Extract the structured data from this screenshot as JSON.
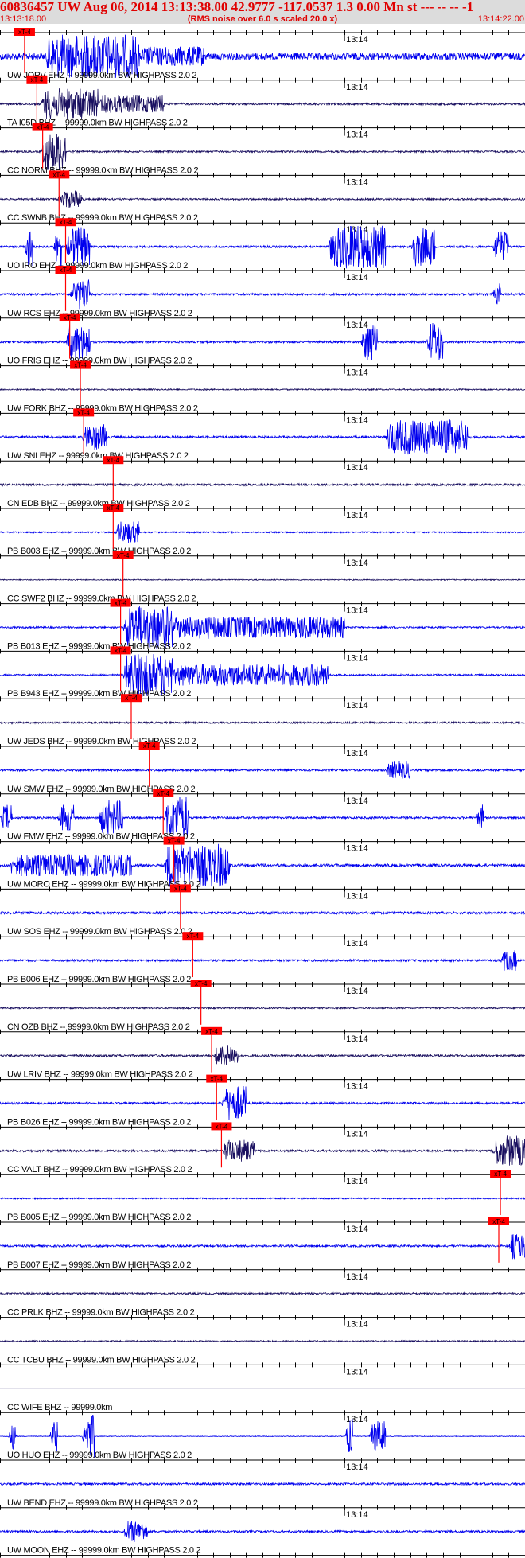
{
  "header": {
    "title": "60836457 UW Aug 06, 2014 13:13:38.00   42.9777 -117.0537  1.3 0.00 Mn st --- -- --  -1",
    "time_start": "13:13:18.00",
    "rms_note": "(RMS noise over 6.0 s scaled 20.0 x)",
    "time_end": "13:14:22.00"
  },
  "colors": {
    "header_background": "#dcdcdc",
    "header_text": "#e00000",
    "pick_marker": "#ff0000",
    "trace_blue": "#0000ee",
    "trace_navy": "#1a1060",
    "axis": "#000000"
  },
  "chart_data": {
    "type": "line",
    "xlabel": "",
    "ylabel": "",
    "x_range": [
      "13:13:18.00",
      "13:14:22.00"
    ],
    "x_range_seconds": [
      0,
      64
    ],
    "minute_marker": {
      "time": "13:14",
      "seconds": 42
    },
    "tick_interval_seconds": 2,
    "pick_label": "xT-4",
    "rows": [
      {
        "label": "UW JORV EHZ -- 99999.0km BW  HIGHPASS  2.0  2",
        "pick_seconds": 3.0,
        "color": "blue",
        "amplitude": 1.0,
        "events": [
          {
            "start": 5.5,
            "end": 17,
            "amp": 1.0
          },
          {
            "start": 17,
            "end": 25,
            "amp": 0.45
          }
        ]
      },
      {
        "label": "TA I05D BHZ -- 99999.0km BW  HIGHPASS  2.0  2",
        "pick_seconds": 4.5,
        "color": "navy",
        "amplitude": 0.3,
        "events": [
          {
            "start": 5,
            "end": 12,
            "amp": 0.7
          },
          {
            "start": 12,
            "end": 20,
            "amp": 0.4
          }
        ]
      },
      {
        "label": "CC NORM BHZ -- 99999.0km BW  HIGHPASS  2.0  2",
        "pick_seconds": 5.2,
        "color": "navy",
        "amplitude": 0.25,
        "events": [
          {
            "start": 5,
            "end": 8,
            "amp": 0.9
          }
        ]
      },
      {
        "label": "CC SWNB BHZ -- 99999.0km BW  HIGHPASS  2.0  2",
        "pick_seconds": 7.2,
        "color": "navy",
        "amplitude": 0.25,
        "events": [
          {
            "start": 7,
            "end": 10,
            "amp": 0.4
          }
        ]
      },
      {
        "label": "UO IRO EHZ -- 99999.0km BW  HIGHPASS  2.0  2",
        "pick_seconds": 8.0,
        "color": "blue",
        "amplitude": 0.3,
        "events": [
          {
            "start": 3,
            "end": 4,
            "amp": 1.0
          },
          {
            "start": 6.5,
            "end": 7.5,
            "amp": 1.0
          },
          {
            "start": 8,
            "end": 11,
            "amp": 0.9
          },
          {
            "start": 40,
            "end": 47,
            "amp": 1.0
          },
          {
            "start": 50,
            "end": 53,
            "amp": 0.9
          },
          {
            "start": 60,
            "end": 62,
            "amp": 0.7
          }
        ]
      },
      {
        "label": "UW RCS EHZ -- 99999.0km BW  HIGHPASS  2.0  2",
        "pick_seconds": 8.0,
        "color": "blue",
        "amplitude": 0.3,
        "events": [
          {
            "start": 8.5,
            "end": 11,
            "amp": 0.7
          },
          {
            "start": 60,
            "end": 61,
            "amp": 0.5
          }
        ]
      },
      {
        "label": "UO FRIS EHZ -- 99999.0km BW  HIGHPASS  2.0  2",
        "pick_seconds": 8.5,
        "color": "blue",
        "amplitude": 0.3,
        "events": [
          {
            "start": 8,
            "end": 11,
            "amp": 0.8
          },
          {
            "start": 44,
            "end": 46,
            "amp": 0.9
          },
          {
            "start": 52,
            "end": 54,
            "amp": 0.9
          }
        ]
      },
      {
        "label": "UW FORK BHZ -- 99999.0km BW  HIGHPASS  2.0  2",
        "pick_seconds": 9.8,
        "color": "navy",
        "amplitude": 0.2,
        "events": []
      },
      {
        "label": "UW SNI EHZ -- 99999.0km BW  HIGHPASS  2.0  2",
        "pick_seconds": 10.2,
        "color": "blue",
        "amplitude": 0.35,
        "events": [
          {
            "start": 10,
            "end": 13,
            "amp": 0.6
          },
          {
            "start": 47,
            "end": 57,
            "amp": 0.8
          }
        ]
      },
      {
        "label": "CN EDB BHZ -- 99999.0km BW  HIGHPASS  2.0  2",
        "pick_seconds": 13.8,
        "color": "navy",
        "amplitude": 0.3,
        "events": []
      },
      {
        "label": "PB B003 EHZ -- 99999.0km BW  HIGHPASS  2.0  2",
        "pick_seconds": 13.8,
        "color": "blue",
        "amplitude": 0.2,
        "events": [
          {
            "start": 14,
            "end": 17,
            "amp": 0.5
          }
        ]
      },
      {
        "label": "CC SWF2 BHZ -- 99999.0km BW  HIGHPASS  2.0  2",
        "pick_seconds": 15.0,
        "color": "navy",
        "amplitude": 0.15,
        "events": []
      },
      {
        "label": "PB B013 EHZ -- 99999.0km BW  HIGHPASS  2.0  2",
        "pick_seconds": 14.7,
        "color": "blue",
        "amplitude": 0.25,
        "events": [
          {
            "start": 15,
            "end": 21,
            "amp": 1.0
          },
          {
            "start": 21,
            "end": 42,
            "amp": 0.5
          }
        ]
      },
      {
        "label": "PB B943 EHZ -- 99999.0km BW  HIGHPASS  2.0  2",
        "pick_seconds": 14.7,
        "color": "blue",
        "amplitude": 0.25,
        "events": [
          {
            "start": 15,
            "end": 21,
            "amp": 1.0
          },
          {
            "start": 21,
            "end": 40,
            "amp": 0.5
          }
        ]
      },
      {
        "label": "UW JEDS BHZ -- 99999.0km BW  HIGHPASS  2.0  2",
        "pick_seconds": 16.0,
        "color": "navy",
        "amplitude": 0.25,
        "events": []
      },
      {
        "label": "UW SMW EHZ -- 99999.0km BW  HIGHPASS  2.0  2",
        "pick_seconds": 18.2,
        "color": "blue",
        "amplitude": 0.3,
        "events": [
          {
            "start": 47,
            "end": 50,
            "amp": 0.4
          }
        ]
      },
      {
        "label": "UW FMW EHZ -- 99999.0km BW  HIGHPASS  2.0  2",
        "pick_seconds": 19.9,
        "color": "blue",
        "amplitude": 0.3,
        "events": [
          {
            "start": 0,
            "end": 1.5,
            "amp": 0.6
          },
          {
            "start": 7,
            "end": 9,
            "amp": 0.6
          },
          {
            "start": 12,
            "end": 15,
            "amp": 0.8
          },
          {
            "start": 20,
            "end": 23,
            "amp": 1.0
          },
          {
            "start": 58,
            "end": 59,
            "amp": 0.6
          }
        ]
      },
      {
        "label": "UW MORO EHZ -- 99999.0km BW  HIGHPASS  2.0  2",
        "pick_seconds": 21.2,
        "color": "blue",
        "amplitude": 0.4,
        "events": [
          {
            "start": 1,
            "end": 16,
            "amp": 0.5
          },
          {
            "start": 20,
            "end": 28,
            "amp": 1.0
          }
        ]
      },
      {
        "label": "UW SOS EHZ -- 99999.0km BW  HIGHPASS  2.0  2",
        "pick_seconds": 22.0,
        "color": "blue",
        "amplitude": 0.35,
        "events": []
      },
      {
        "label": "PB B006 EHZ -- 99999.0km BW  HIGHPASS  2.0  2",
        "pick_seconds": 23.5,
        "color": "blue",
        "amplitude": 0.3,
        "events": [
          {
            "start": 61,
            "end": 63,
            "amp": 0.5
          }
        ]
      },
      {
        "label": "CN OZB BHZ -- 99999.0km BW  HIGHPASS  2.0  2",
        "pick_seconds": 24.5,
        "color": "navy",
        "amplitude": 0.2,
        "events": []
      },
      {
        "label": "UW LRIV BHZ -- 99999.0km BW  HIGHPASS  2.0  2",
        "pick_seconds": 25.8,
        "color": "navy",
        "amplitude": 0.3,
        "events": [
          {
            "start": 26,
            "end": 29,
            "amp": 0.5
          }
        ]
      },
      {
        "label": "PB B026 EHZ -- 99999.0km BW  HIGHPASS  2.0  2",
        "pick_seconds": 26.4,
        "color": "blue",
        "amplitude": 0.3,
        "events": [
          {
            "start": 27,
            "end": 30,
            "amp": 0.8
          }
        ]
      },
      {
        "label": "CC VALT BHZ -- 99999.0km BW  HIGHPASS  2.0  2",
        "pick_seconds": 27.0,
        "color": "navy",
        "amplitude": 0.3,
        "events": [
          {
            "start": 27,
            "end": 31,
            "amp": 0.5
          },
          {
            "start": 60,
            "end": 64,
            "amp": 0.7
          }
        ]
      },
      {
        "label": "PB B005 EHZ -- 99999.0km BW  HIGHPASS  2.0  2",
        "pick_seconds": 61.0,
        "color": "blue",
        "amplitude": 0.2,
        "events": []
      },
      {
        "label": "PB B007 EHZ -- 99999.0km BW  HIGHPASS  2.0  2",
        "pick_seconds": 60.8,
        "color": "blue",
        "amplitude": 0.3,
        "events": [
          {
            "start": 62,
            "end": 64,
            "amp": 0.6
          }
        ]
      },
      {
        "label": "CC PRLK BHZ -- 99999.0km BW  HIGHPASS  2.0  2",
        "pick_seconds": null,
        "color": "navy",
        "amplitude": 0.25,
        "events": []
      },
      {
        "label": "CC TCBU BHZ -- 99999.0km BW  HIGHPASS  2.0  2",
        "pick_seconds": null,
        "color": "navy",
        "amplitude": 0.2,
        "events": []
      },
      {
        "label": "CC WIFE BHZ -- 99999.0km",
        "pick_seconds": null,
        "color": "navy",
        "amplitude": 0.0,
        "events": []
      },
      {
        "label": "UO HUO EHZ -- 99999.0km BW  HIGHPASS  2.0  2",
        "pick_seconds": null,
        "color": "blue",
        "amplitude": 0.1,
        "events": [
          {
            "start": 1,
            "end": 2,
            "amp": 0.6
          },
          {
            "start": 6,
            "end": 7,
            "amp": 0.7
          },
          {
            "start": 10,
            "end": 11.5,
            "amp": 1.0
          },
          {
            "start": 42,
            "end": 43,
            "amp": 0.8
          },
          {
            "start": 45,
            "end": 47,
            "amp": 0.7
          }
        ]
      },
      {
        "label": "UW BEND EHZ -- 99999.0km BW  HIGHPASS  2.0  2",
        "pick_seconds": null,
        "color": "blue",
        "amplitude": 0.3,
        "events": []
      },
      {
        "label": "UW MOON EHZ -- 99999.0km BW  HIGHPASS  2.0  2",
        "pick_seconds": null,
        "color": "blue",
        "amplitude": 0.3,
        "events": [
          {
            "start": 15,
            "end": 18,
            "amp": 0.5
          }
        ]
      }
    ]
  }
}
